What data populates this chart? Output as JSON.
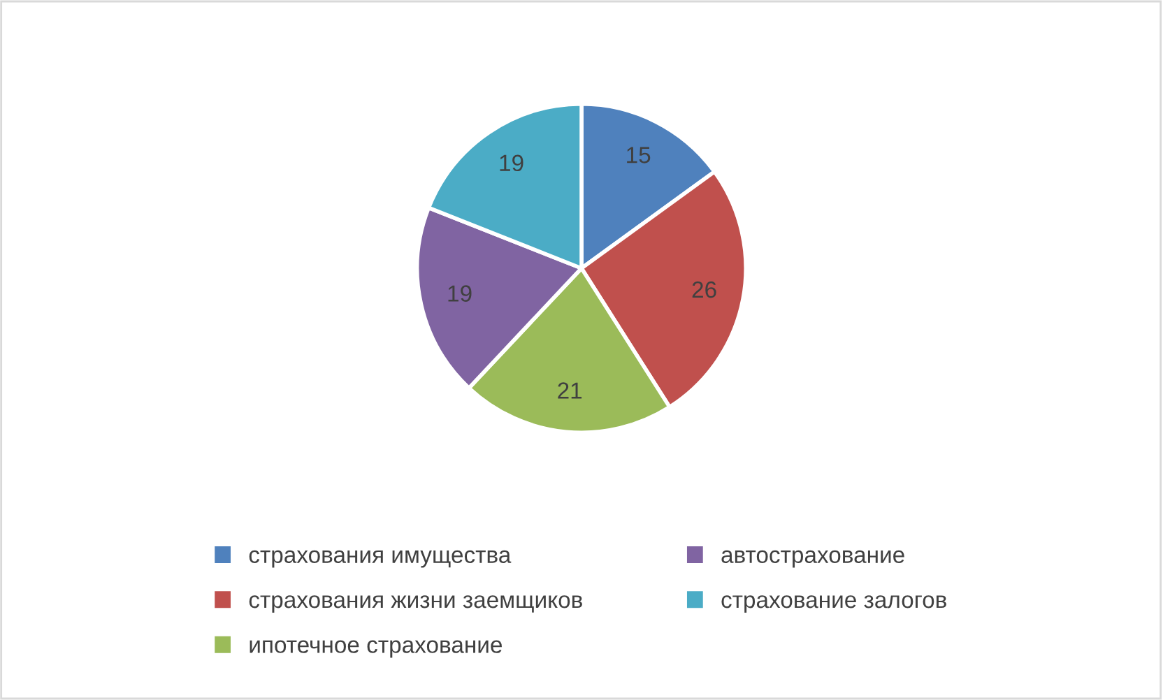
{
  "chart_data": {
    "type": "pie",
    "categories": [
      "страхования имущества",
      "страхования жизни заемщиков",
      "ипотечное страхование",
      "автострахование",
      "страхование залогов"
    ],
    "values": [
      15,
      26,
      21,
      19,
      19
    ],
    "colors": [
      "#4f81bd",
      "#c0504d",
      "#9bbb59",
      "#8064a2",
      "#4bacc6"
    ],
    "data_labels": true,
    "legend": "bottom"
  }
}
